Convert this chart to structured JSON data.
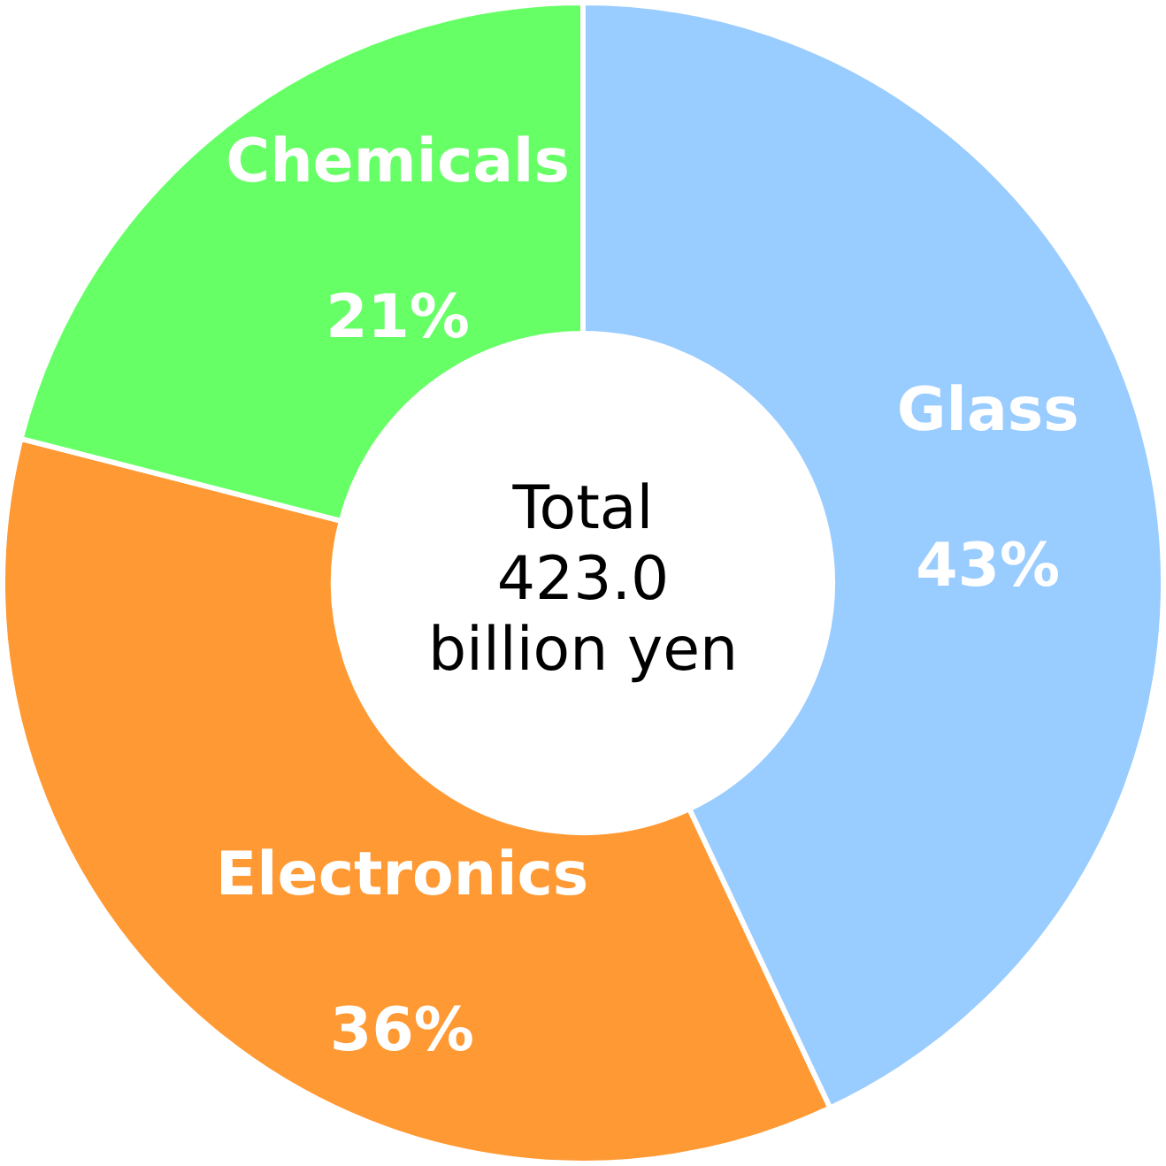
{
  "chart_data": {
    "type": "donut",
    "categories": [
      "Glass",
      "Electronics",
      "Chemicals"
    ],
    "values": [
      43,
      36,
      21
    ],
    "colors": [
      "#99ccff",
      "#ff9933",
      "#66ff66"
    ],
    "value_labels": [
      "43%",
      "36%",
      "21%"
    ],
    "annotations": [
      "Total",
      "423.0",
      "billion yen"
    ],
    "legend": false
  }
}
